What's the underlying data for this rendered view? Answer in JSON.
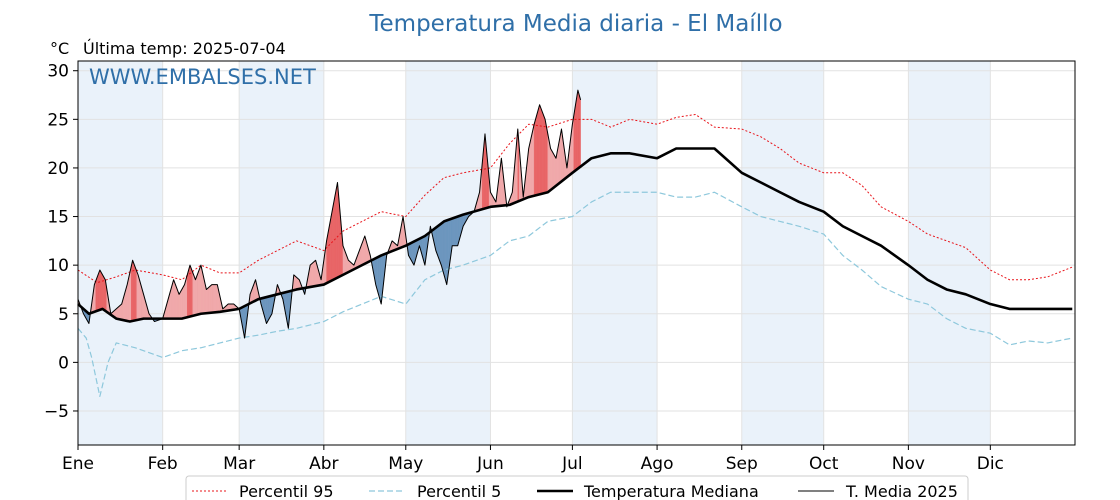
{
  "chart_data": {
    "type": "line",
    "title": "Temperatura Media diaria - El Maíllo",
    "unit_label": "°C",
    "last_reading_label": "Última temp: 2025-07-04",
    "watermark": "WWW.EMBALSES.NET",
    "ylim": [
      -8.5,
      31
    ],
    "yticks": [
      30,
      25,
      20,
      15,
      10,
      5,
      0,
      -5
    ],
    "ytick_labels": [
      "30",
      "25",
      "20",
      "15",
      "10",
      "5",
      "0",
      "−5"
    ],
    "months": [
      "Ene",
      "Feb",
      "Mar",
      "Abr",
      "May",
      "Jun",
      "Jul",
      "Ago",
      "Sep",
      "Oct",
      "Nov",
      "Dic"
    ],
    "month_start_days": [
      1,
      32,
      60,
      91,
      121,
      152,
      182,
      213,
      244,
      274,
      305,
      335
    ],
    "days_in_year": 365,
    "grid": true,
    "shaded_months": [
      "Ene",
      "Mar",
      "May",
      "Jul",
      "Sep",
      "Nov"
    ],
    "legend_position": "bottom",
    "colors": {
      "p95": "#e8141a",
      "p5": "#8ec8dc",
      "median": "#000000",
      "t2025": "#000000",
      "above": "#f0a8aa",
      "above_strong": "#e86466",
      "below": "#6c96be",
      "band": "#eaf2fa"
    },
    "series": [
      {
        "name": "Percentil 95",
        "style": "dotted",
        "x": [
          1,
          8,
          15,
          22,
          32,
          39,
          46,
          53,
          60,
          67,
          74,
          81,
          91,
          98,
          105,
          112,
          121,
          128,
          135,
          142,
          152,
          159,
          166,
          173,
          182,
          189,
          196,
          203,
          213,
          220,
          227,
          234,
          244,
          251,
          258,
          265,
          274,
          281,
          288,
          295,
          305,
          312,
          319,
          326,
          335,
          342,
          349,
          356,
          365
        ],
        "y": [
          9.5,
          8.2,
          8.8,
          9.5,
          9,
          8.5,
          10,
          9.2,
          9.2,
          10.5,
          11.5,
          12.5,
          11.5,
          13.5,
          14.5,
          15.5,
          15,
          17.2,
          19,
          19.5,
          20,
          22.5,
          24.5,
          24.2,
          25,
          25,
          24.2,
          25,
          24.5,
          25.2,
          25.5,
          24.2,
          24,
          23.2,
          22,
          20.5,
          19.5,
          19.5,
          18.2,
          16,
          14.5,
          13.2,
          12.5,
          11.8,
          9.5,
          8.5,
          8.5,
          8.8,
          9.8
        ]
      },
      {
        "name": "Percentil 5",
        "style": "dashed",
        "x": [
          1,
          4,
          6,
          9,
          12,
          15,
          22,
          32,
          39,
          46,
          53,
          60,
          67,
          74,
          81,
          91,
          98,
          105,
          112,
          121,
          128,
          135,
          142,
          152,
          159,
          166,
          173,
          182,
          189,
          196,
          203,
          213,
          220,
          227,
          234,
          244,
          251,
          258,
          265,
          274,
          281,
          288,
          295,
          305,
          312,
          319,
          326,
          335,
          342,
          349,
          356,
          365
        ],
        "y": [
          3.5,
          2.5,
          0.5,
          -3.5,
          0,
          2,
          1.5,
          0.5,
          1.2,
          1.5,
          2,
          2.5,
          2.8,
          3.2,
          3.5,
          4.2,
          5.2,
          6,
          6.8,
          6,
          8.5,
          9.5,
          10,
          11,
          12.5,
          13,
          14.5,
          15,
          16.5,
          17.5,
          17.5,
          17.5,
          17,
          17,
          17.5,
          16,
          15,
          14.5,
          14,
          13.2,
          11,
          9.5,
          7.8,
          6.5,
          6,
          4.5,
          3.5,
          3,
          1.8,
          2.2,
          2,
          2.5
        ]
      },
      {
        "name": "Temperatura Mediana",
        "style": "solid-thick",
        "x": [
          1,
          5,
          10,
          15,
          20,
          25,
          32,
          39,
          46,
          53,
          60,
          67,
          74,
          81,
          91,
          98,
          105,
          112,
          121,
          128,
          135,
          142,
          152,
          159,
          166,
          173,
          182,
          189,
          196,
          203,
          213,
          220,
          227,
          234,
          244,
          251,
          258,
          265,
          274,
          281,
          288,
          295,
          305,
          312,
          319,
          326,
          335,
          342,
          349,
          356,
          365
        ],
        "y": [
          6,
          5,
          5.5,
          4.5,
          4.2,
          4.5,
          4.5,
          4.5,
          5,
          5.2,
          5.5,
          6.5,
          7,
          7.5,
          8,
          9,
          10,
          11,
          12,
          13,
          14.5,
          15.2,
          16,
          16.2,
          17,
          17.5,
          19.5,
          21,
          21.5,
          21.5,
          21,
          22,
          22,
          22,
          19.5,
          18.5,
          17.5,
          16.5,
          15.5,
          14,
          13,
          12,
          10,
          8.5,
          7.5,
          7,
          6,
          5.5,
          5.5,
          5.5,
          5.5
        ]
      },
      {
        "name": "T. Media 2025",
        "style": "solid",
        "x": [
          1,
          3,
          5,
          7,
          9,
          11,
          13,
          15,
          17,
          19,
          21,
          23,
          25,
          27,
          29,
          32,
          34,
          36,
          38,
          40,
          42,
          44,
          46,
          48,
          50,
          52,
          54,
          56,
          58,
          60,
          62,
          64,
          66,
          68,
          70,
          72,
          74,
          76,
          78,
          80,
          82,
          84,
          86,
          88,
          90,
          92,
          94,
          96,
          98,
          100,
          102,
          104,
          106,
          108,
          110,
          112,
          114,
          116,
          118,
          120,
          122,
          124,
          126,
          128,
          130,
          132,
          134,
          136,
          138,
          140,
          142,
          144,
          146,
          148,
          150,
          152,
          154,
          156,
          158,
          160,
          162,
          164,
          166,
          168,
          170,
          172,
          174,
          176,
          178,
          180,
          182,
          184,
          185
        ],
        "y": [
          6.5,
          5,
          4,
          8,
          9.5,
          8.5,
          5,
          5.5,
          6,
          8,
          10.5,
          9,
          7,
          5,
          4.2,
          4.5,
          6.5,
          8.5,
          7,
          8,
          10,
          8.5,
          10,
          7.5,
          8,
          8,
          5.5,
          6,
          6,
          5.5,
          2.5,
          7,
          8.5,
          6,
          4,
          5,
          8,
          6.5,
          3.5,
          9,
          8.5,
          7,
          10,
          10.5,
          8.5,
          12.5,
          15.5,
          18.5,
          12,
          10.5,
          10,
          11.5,
          13,
          11,
          8,
          6,
          11,
          12.5,
          12,
          15,
          11,
          10,
          12,
          10,
          14,
          11.5,
          10,
          8,
          12,
          12,
          14,
          15,
          15.5,
          17.5,
          23.5,
          17.5,
          16.5,
          21,
          16,
          17.5,
          24,
          17,
          22,
          24.5,
          26.5,
          25,
          22,
          21,
          24,
          20,
          24.5,
          28,
          27
        ]
      }
    ]
  },
  "legend": [
    {
      "label": "Percentil 95",
      "style": "dotted"
    },
    {
      "label": "Percentil 5",
      "style": "dashed"
    },
    {
      "label": "Temperatura Mediana",
      "style": "solid-thick"
    },
    {
      "label": "T. Media 2025",
      "style": "solid"
    }
  ]
}
